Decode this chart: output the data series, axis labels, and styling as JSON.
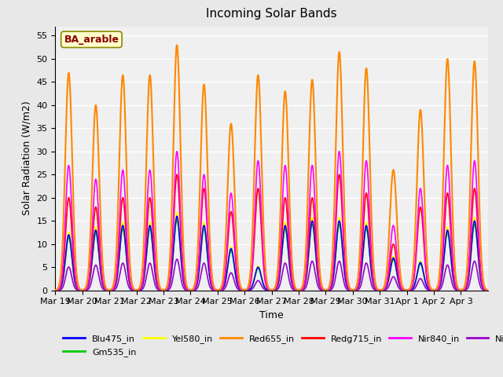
{
  "title": "Incoming Solar Bands",
  "xlabel": "Time",
  "ylabel": "Solar Radiation (W/m2)",
  "annotation": "BA_arable",
  "ylim": [
    0,
    57
  ],
  "yticks": [
    0,
    5,
    10,
    15,
    20,
    25,
    30,
    35,
    40,
    45,
    50,
    55
  ],
  "x_tick_labels": [
    "Mar 19",
    "Mar 20",
    "Mar 21",
    "Mar 22",
    "Mar 23",
    "Mar 24",
    "Mar 25",
    "Mar 26",
    "Mar 27",
    "Mar 28",
    "Mar 29",
    "Mar 30",
    "Mar 31",
    "Apr 1",
    "Apr 2",
    "Apr 3"
  ],
  "series": {
    "Blu475_in": {
      "color": "#0000ff",
      "linewidth": 1.2
    },
    "Gm535_in": {
      "color": "#00cc00",
      "linewidth": 1.2
    },
    "Yel580_in": {
      "color": "#ffff00",
      "linewidth": 1.2
    },
    "Red655_in": {
      "color": "#ff8800",
      "linewidth": 1.5
    },
    "Redg715_in": {
      "color": "#ff0000",
      "linewidth": 1.2
    },
    "Nir840_in": {
      "color": "#ff00ff",
      "linewidth": 1.2
    },
    "Nir945_in": {
      "color": "#9900cc",
      "linewidth": 1.2
    }
  },
  "background_color": "#e8e8e8",
  "plot_bg_color": "#f0f0f0",
  "grid_color": "#ffffff",
  "n_days": 16,
  "day_peaks_orange": [
    47,
    40,
    46.5,
    46.5,
    53,
    44.5,
    36,
    46.5,
    43,
    45.5,
    51.5,
    48,
    26,
    39,
    50,
    49.5
  ],
  "day_peaks_blue": [
    12,
    13,
    14,
    14,
    16,
    14,
    9,
    5,
    14,
    15,
    15,
    14,
    7,
    6,
    13,
    15
  ],
  "day_peaks_magenta": [
    27,
    24,
    26,
    26,
    30,
    25,
    21,
    28,
    27,
    27,
    30,
    28,
    14,
    22,
    27,
    28
  ],
  "day_peaks_red": [
    20,
    18,
    20,
    20,
    25,
    22,
    17,
    22,
    20,
    20,
    25,
    21,
    10,
    18,
    21,
    22
  ]
}
